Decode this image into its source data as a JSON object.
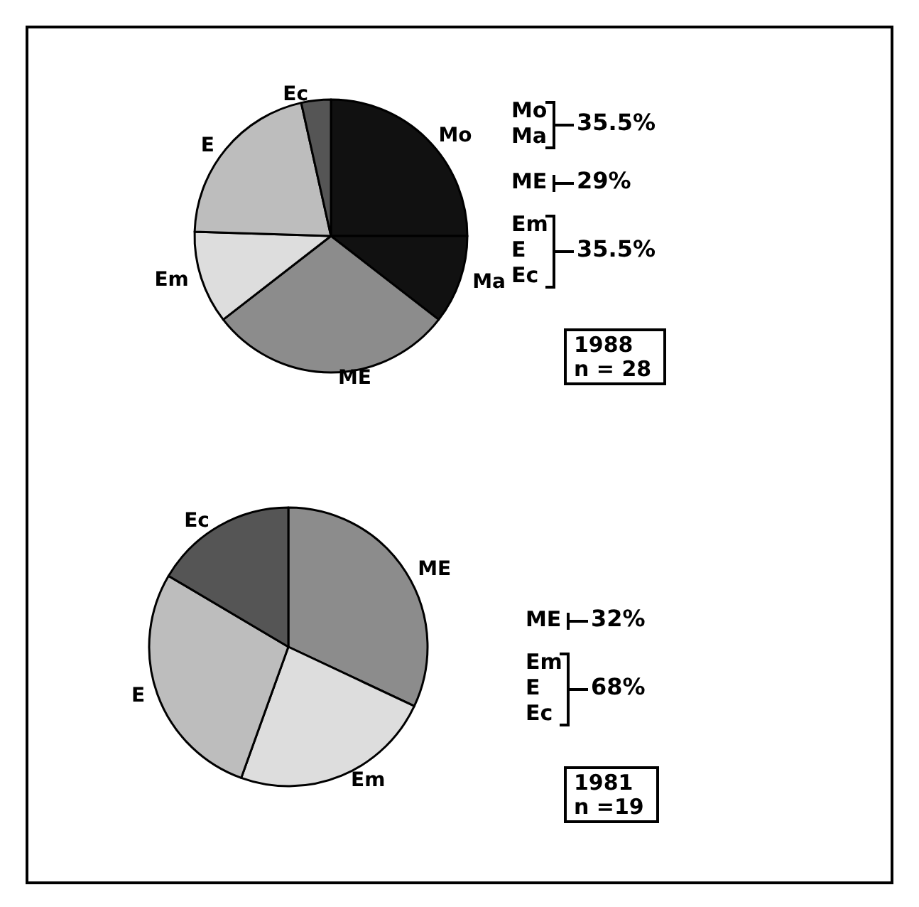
{
  "chart_data": [
    {
      "type": "pie",
      "title": "1988",
      "subtitle": "n = 28",
      "categories": [
        "Mo",
        "Ma",
        "ME",
        "Em",
        "E",
        "Ec"
      ],
      "values": [
        25,
        10.5,
        29,
        11,
        21,
        3.5
      ],
      "colors": [
        "#111111",
        "#111111",
        "#8c8c8c",
        "#dddddd",
        "#bdbdbd",
        "#555555"
      ],
      "annotations": [
        "Mo\nMa\n35.5%",
        "ME\n29%",
        "Em\nE\nEc\n35.5%"
      ]
    },
    {
      "type": "pie",
      "title": "1981",
      "subtitle": "n =19",
      "categories": [
        "ME",
        "Em",
        "E",
        "Ec"
      ],
      "values": [
        32,
        23.5,
        28,
        16.5
      ],
      "colors": [
        "#8c8c8c",
        "#dddddd",
        "#bdbdbd",
        "#555555"
      ],
      "annotations": [
        "ME\n32%",
        "Em\nE\nEc\n68%"
      ]
    }
  ]
}
